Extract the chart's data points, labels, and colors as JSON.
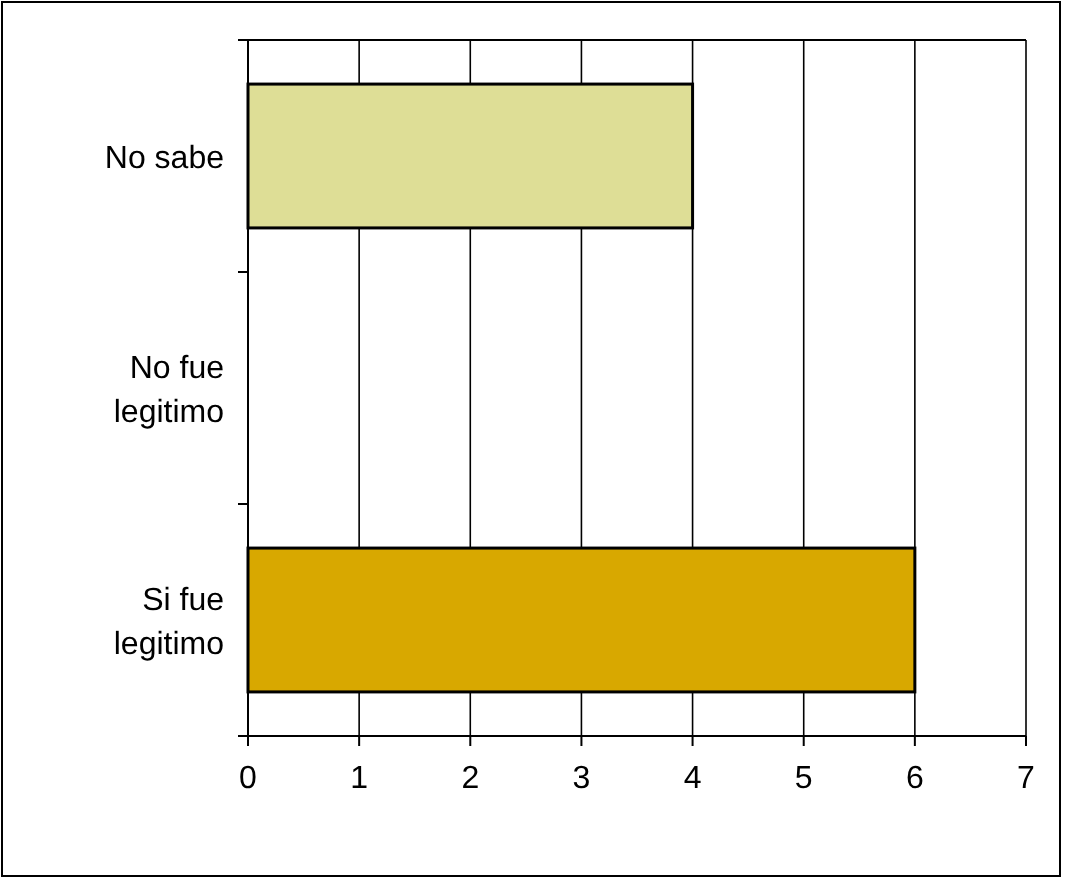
{
  "chart_data": {
    "type": "bar",
    "orientation": "horizontal",
    "categories": [
      "No sabe",
      "No fue legitimo",
      "Si fue legitimo"
    ],
    "values": [
      4,
      0,
      6
    ],
    "colors": [
      "#dede96",
      "#d8a800",
      "#d8a800"
    ],
    "xlim": [
      0,
      7
    ],
    "xticks": [
      0,
      1,
      2,
      3,
      4,
      5,
      6,
      7
    ],
    "grid": "x"
  }
}
